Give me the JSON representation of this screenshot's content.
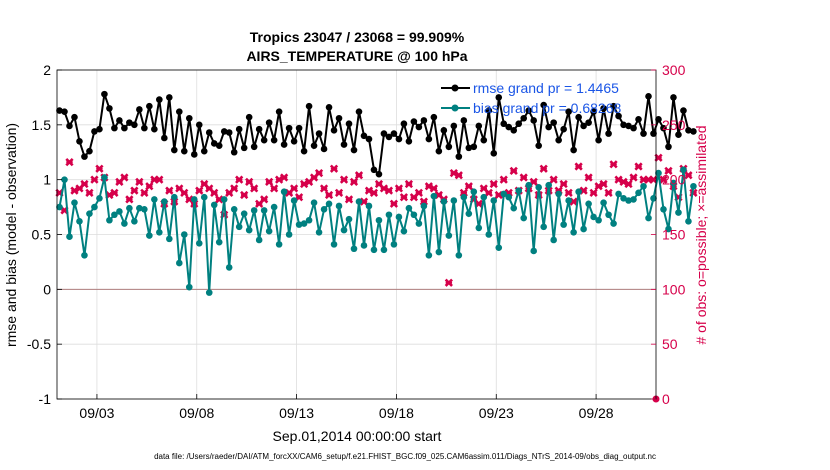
{
  "chart_data": {
    "type": "line",
    "title_line1": "Tropics 23047 / 23068 = 99.909%",
    "title_line2": "AIRS_TEMPERATURE @ 100 hPa",
    "xlabel": "Sep.01,2014 00:00:00 start",
    "ylabel_left": "rmse and bias (model - observation)",
    "ylabel_right": "# of obs: o=possible; ×=assimilated",
    "footer": "data file: /Users/raeder/DAI/ATM_forcXX/CAM6_setup/f.e21.FHIST_BGC.f09_025.CAM6assim.011/Diags_NTrS_2014-09/obs_diag_output.nc",
    "xlim": [
      1.0,
      31.0
    ],
    "ylim_left": [
      -1,
      2
    ],
    "ylim_right": [
      0,
      300
    ],
    "xtick_values": [
      3,
      8,
      13,
      18,
      23,
      28
    ],
    "xtick_labels": [
      "09/03",
      "09/08",
      "09/13",
      "09/18",
      "09/23",
      "09/28"
    ],
    "ytick_left": [
      "-1",
      "-0.5",
      "0",
      "0.5",
      "1",
      "1.5",
      "2"
    ],
    "ytick_right": [
      "0",
      "50",
      "100",
      "150",
      "200",
      "250",
      "300"
    ],
    "colors": {
      "rmse": "#000000",
      "bias": "#008080",
      "obs": "#d6004a",
      "zero": "#b07f7f",
      "grid": "#dddddd",
      "legend_text": "#1a55e6"
    },
    "legend": [
      {
        "name": "rmse",
        "label": "rmse grand pr = 1.4465"
      },
      {
        "name": "bias",
        "label": "bias grand pr = 0.68268"
      }
    ],
    "series": [
      {
        "name": "rmse",
        "values": [
          1.63,
          1.62,
          1.49,
          1.57,
          1.35,
          1.21,
          1.26,
          1.44,
          1.46,
          1.78,
          1.65,
          1.47,
          1.54,
          1.47,
          1.52,
          1.5,
          1.64,
          1.47,
          1.67,
          1.46,
          1.73,
          1.38,
          1.75,
          1.27,
          1.62,
          1.26,
          1.56,
          1.23,
          1.5,
          1.26,
          1.43,
          1.33,
          1.31,
          1.44,
          1.43,
          1.25,
          1.46,
          1.29,
          1.57,
          1.3,
          1.46,
          1.36,
          1.52,
          1.36,
          1.62,
          1.32,
          1.47,
          1.35,
          1.47,
          1.26,
          1.67,
          1.31,
          1.42,
          1.28,
          1.66,
          1.45,
          1.56,
          1.32,
          1.51,
          1.27,
          1.62,
          1.4,
          1.37,
          1.09,
          1.05,
          1.42,
          1.39,
          1.42,
          1.37,
          1.51,
          1.35,
          1.53,
          1.48,
          1.54,
          1.37,
          1.57,
          1.26,
          1.45,
          1.3,
          1.49,
          1.21,
          1.54,
          1.29,
          1.3,
          1.49,
          1.36,
          1.63,
          1.24,
          1.75,
          1.51,
          1.48,
          1.45,
          1.51,
          1.56,
          1.63,
          1.54,
          1.31,
          1.68,
          1.48,
          1.52,
          1.36,
          1.46,
          1.62,
          1.27,
          1.57,
          1.49,
          1.52,
          1.62,
          1.36,
          1.65,
          1.42,
          1.67,
          1.58,
          1.5,
          1.49,
          1.47,
          1.55,
          1.42,
          1.76,
          1.42,
          1.55,
          1.47,
          1.3,
          1.75,
          1.41,
          1.63,
          1.45,
          1.44
        ]
      },
      {
        "name": "bias",
        "values": [
          0.75,
          1.0,
          0.48,
          0.79,
          0.62,
          0.31,
          0.69,
          0.75,
          0.83,
          1.02,
          0.63,
          0.68,
          0.71,
          0.6,
          0.74,
          0.62,
          0.74,
          0.73,
          0.49,
          0.82,
          0.52,
          0.8,
          0.46,
          0.84,
          0.24,
          0.5,
          0.02,
          0.82,
          0.42,
          0.84,
          -0.03,
          0.77,
          0.43,
          0.82,
          0.2,
          0.73,
          0.57,
          0.69,
          0.54,
          0.72,
          0.45,
          0.72,
          0.53,
          0.75,
          0.41,
          0.89,
          0.5,
          0.81,
          0.59,
          0.6,
          0.63,
          0.79,
          0.52,
          0.73,
          0.78,
          0.41,
          0.76,
          0.54,
          0.64,
          0.37,
          0.8,
          0.4,
          0.76,
          0.36,
          0.63,
          0.36,
          0.68,
          0.41,
          0.66,
          0.53,
          0.74,
          0.68,
          0.6,
          0.76,
          0.31,
          0.85,
          0.34,
          0.8,
          0.49,
          0.81,
          0.31,
          0.84,
          0.69,
          0.89,
          0.56,
          0.84,
          0.5,
          0.81,
          0.38,
          0.87,
          0.84,
          0.74,
          0.9,
          0.65,
          0.95,
          0.35,
          0.93,
          0.57,
          0.95,
          0.45,
          0.87,
          0.59,
          0.81,
          0.52,
          0.89,
          0.55,
          0.78,
          0.66,
          0.63,
          0.79,
          0.68,
          0.6,
          0.87,
          0.83,
          0.81,
          0.82,
          0.88,
          0.94,
          0.65,
          0.83,
          1.06,
          0.73,
          0.55,
          0.97,
          0.7,
          1.09,
          0.62,
          0.94
        ]
      },
      {
        "name": "obs_assimilated",
        "values": [
          188,
          172,
          216,
          190,
          192,
          196,
          188,
          200,
          210,
          202,
          186,
          188,
          198,
          202,
          182,
          190,
          198,
          188,
          194,
          200,
          200,
          178,
          190,
          180,
          192,
          188,
          182,
          178,
          190,
          196,
          192,
          188,
          182,
          168,
          188,
          192,
          200,
          186,
          198,
          192,
          178,
          182,
          198,
          192,
          200,
          202,
          188,
          192,
          184,
          196,
          198,
          202,
          206,
          192,
          186,
          210,
          188,
          200,
          182,
          198,
          204,
          180,
          190,
          188,
          196,
          192,
          190,
          178,
          192,
          184,
          196,
          184,
          188,
          180,
          194,
          192,
          186,
          182,
          106,
          206,
          204,
          188,
          194,
          182,
          178,
          192,
          188,
          196,
          186,
          200,
          188,
          208,
          190,
          202,
          192,
          198,
          186,
          210,
          190,
          200,
          190,
          196,
          188,
          180,
          212,
          190,
          202,
          188,
          194,
          196,
          188,
          214,
          200,
          198,
          196,
          202,
          212,
          200,
          200,
          200,
          220,
          200,
          208,
          194,
          184,
          210,
          204,
          188
        ]
      },
      {
        "name": "obs_possible_last",
        "values": [
          0
        ]
      }
    ]
  }
}
